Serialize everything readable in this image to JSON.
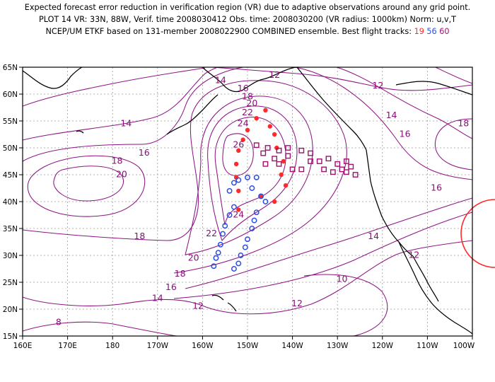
{
  "header": {
    "line1": "Expected forecast error reduction in verification region (VR) due to adaptive observations around any grid point.",
    "line2": "PLOT 14 VR: 33N, 88W, Verif. time 2008030412 Obs. time: 2008030200 (VR radius: 1000km) Norm: u,v,T",
    "line3_prefix": "NCEP/UM ETKF based on 131-member 2008022900 COMBINED ensemble.  Best flight tracks:",
    "tracks": [
      {
        "label": "19",
        "color": "#ff2a2a"
      },
      {
        "label": "56",
        "color": "#2b4ee6"
      },
      {
        "label": "60",
        "color": "#a0106e"
      }
    ]
  },
  "axes": {
    "lat_labels": [
      "65N",
      "60N",
      "55N",
      "50N",
      "45N",
      "40N",
      "35N",
      "30N",
      "25N",
      "20N",
      "15N"
    ],
    "lon_labels": [
      "160E",
      "170E",
      "180",
      "170W",
      "160W",
      "150W",
      "140W",
      "130W",
      "120W",
      "110W",
      "100W"
    ]
  },
  "contour_labels": [
    {
      "text": "12",
      "lon": -144,
      "lat": 63.5
    },
    {
      "text": "12",
      "lon": -121,
      "lat": 61.5
    },
    {
      "text": "14",
      "lon": -156,
      "lat": 62.5
    },
    {
      "text": "14",
      "lon": -118,
      "lat": 56.0
    },
    {
      "text": "16",
      "lon": -151,
      "lat": 61.0
    },
    {
      "text": "16",
      "lon": -115,
      "lat": 52.5
    },
    {
      "text": "18",
      "lon": -150,
      "lat": 59.5
    },
    {
      "text": "18",
      "lon": -102,
      "lat": 54.5
    },
    {
      "text": "20",
      "lon": -149,
      "lat": 58.2
    },
    {
      "text": "22",
      "lon": -150,
      "lat": 56.5
    },
    {
      "text": "24",
      "lon": -151,
      "lat": 54.5
    },
    {
      "text": "26",
      "lon": -152,
      "lat": 50.5
    },
    {
      "text": "14",
      "lon": -177,
      "lat": 54.5
    },
    {
      "text": "16",
      "lon": -173,
      "lat": 49.0
    },
    {
      "text": "18",
      "lon": -179,
      "lat": 47.5
    },
    {
      "text": "20",
      "lon": -178,
      "lat": 45.0
    },
    {
      "text": "16",
      "lon": -108,
      "lat": 42.5
    },
    {
      "text": "24",
      "lon": -152,
      "lat": 37.5
    },
    {
      "text": "22",
      "lon": -158,
      "lat": 34.0
    },
    {
      "text": "18",
      "lon": -174,
      "lat": 33.5
    },
    {
      "text": "14",
      "lon": -122,
      "lat": 33.5
    },
    {
      "text": "20",
      "lon": -162,
      "lat": 29.5
    },
    {
      "text": "12",
      "lon": -113,
      "lat": 30.0
    },
    {
      "text": "18",
      "lon": -165,
      "lat": 26.5
    },
    {
      "text": "10",
      "lon": -129,
      "lat": 25.5
    },
    {
      "text": "16",
      "lon": -167,
      "lat": 24.0
    },
    {
      "text": "14",
      "lon": -170,
      "lat": 22.0
    },
    {
      "text": "12",
      "lon": -161,
      "lat": 20.5
    },
    {
      "text": "12",
      "lon": -139,
      "lat": 21.0
    },
    {
      "text": "8",
      "lon": -192,
      "lat": 17.5
    }
  ],
  "tracks": {
    "red": [
      [
        -146,
        57
      ],
      [
        -148,
        55.5
      ],
      [
        -145,
        54
      ],
      [
        -150,
        53.3
      ],
      [
        -144,
        52.5
      ],
      [
        -151,
        51.5
      ],
      [
        -143.5,
        50
      ],
      [
        -152,
        49.5
      ],
      [
        -142,
        47.5
      ],
      [
        -152.5,
        47
      ],
      [
        -142.5,
        45
      ],
      [
        -152.5,
        44.5
      ],
      [
        -141.5,
        43
      ],
      [
        -152,
        42
      ],
      [
        -147,
        41
      ],
      [
        -144,
        40
      ],
      [
        -152,
        38.5
      ]
    ],
    "blue": [
      [
        -152,
        44
      ],
      [
        -150,
        44.5
      ],
      [
        -148,
        44.5
      ],
      [
        -153,
        43.5
      ],
      [
        -149,
        42.5
      ],
      [
        -154,
        42
      ],
      [
        -147,
        41
      ],
      [
        -153,
        39
      ],
      [
        -146,
        40
      ],
      [
        -148,
        38
      ],
      [
        -154,
        37.5
      ],
      [
        -148.5,
        36.5
      ],
      [
        -155,
        35.5
      ],
      [
        -149,
        35
      ],
      [
        -155.5,
        34
      ],
      [
        -150,
        33
      ],
      [
        -156,
        32
      ],
      [
        -150.5,
        31.5
      ],
      [
        -156.5,
        30.5
      ],
      [
        -151.5,
        30
      ],
      [
        -157,
        29.5
      ],
      [
        -152,
        28.5
      ],
      [
        -157.5,
        28
      ],
      [
        -153,
        27.5
      ]
    ],
    "purple": [
      [
        -148,
        50.5
      ],
      [
        -146.5,
        49
      ],
      [
        -145.5,
        50
      ],
      [
        -144,
        48
      ],
      [
        -143,
        47
      ],
      [
        -146,
        47
      ],
      [
        -143,
        49.5
      ],
      [
        -141,
        50
      ],
      [
        -140,
        46
      ],
      [
        -141,
        48.5
      ],
      [
        -138,
        49.5
      ],
      [
        -138,
        46
      ],
      [
        -136,
        47.5
      ],
      [
        -136,
        49
      ],
      [
        -134,
        47.5
      ],
      [
        -133,
        46
      ],
      [
        -132,
        48
      ],
      [
        -131,
        45.5
      ],
      [
        -130,
        47
      ],
      [
        -129,
        46
      ],
      [
        -128,
        47.5
      ],
      [
        -128,
        45.5
      ],
      [
        -127,
        46.5
      ],
      [
        -126,
        45
      ]
    ]
  }
}
